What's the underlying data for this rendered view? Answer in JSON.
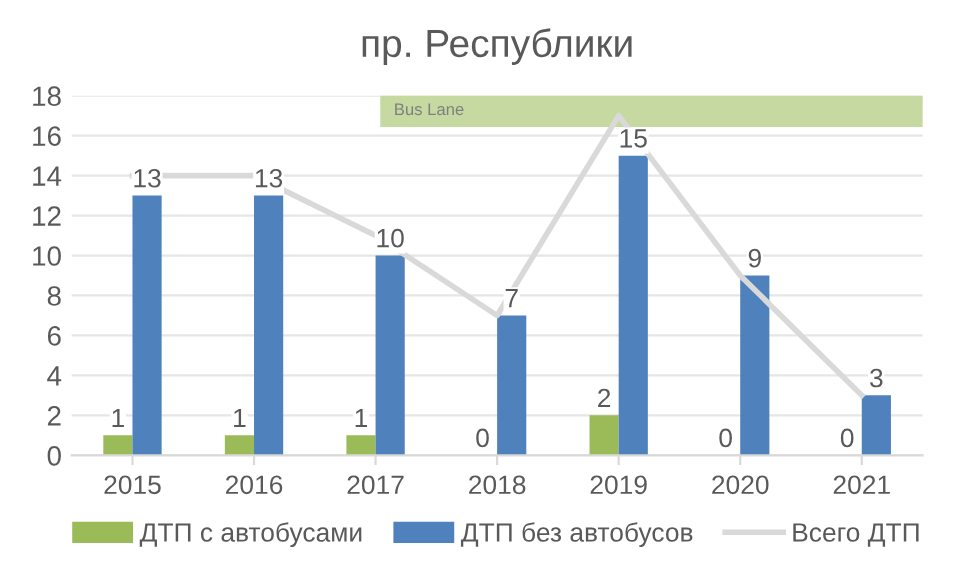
{
  "chart_data": {
    "type": "bar",
    "title": "пр. Республики",
    "categories": [
      "2015",
      "2016",
      "2017",
      "2018",
      "2019",
      "2020",
      "2021"
    ],
    "series": [
      {
        "name": "ДТП с автобусами",
        "color": "#9bbb59",
        "values": [
          1,
          1,
          1,
          0,
          2,
          0,
          0
        ],
        "value_labels": [
          "1",
          "1",
          "1",
          "0",
          "2",
          "0",
          "0"
        ]
      },
      {
        "name": "ДТП без автобусов",
        "color": "#4f81bd",
        "values": [
          13,
          13,
          10,
          7,
          15,
          9,
          3
        ],
        "value_labels": [
          "13",
          "13",
          "10",
          "7",
          "15",
          "9",
          "3"
        ]
      },
      {
        "name": "Всего ДТП",
        "type": "line",
        "color": "#d9d9d9",
        "values": [
          14,
          14,
          11,
          7,
          17,
          9,
          3
        ]
      }
    ],
    "bands": [
      {
        "axis": "x",
        "from": "2017",
        "to": "2021",
        "label": "Bus Lane",
        "color": "#c5d9a0"
      }
    ],
    "ylim": [
      0,
      18
    ],
    "yticks": [
      0,
      2,
      4,
      6,
      8,
      10,
      12,
      14,
      16,
      18
    ],
    "grid": "y",
    "legend": "bottom",
    "marker": "none"
  }
}
